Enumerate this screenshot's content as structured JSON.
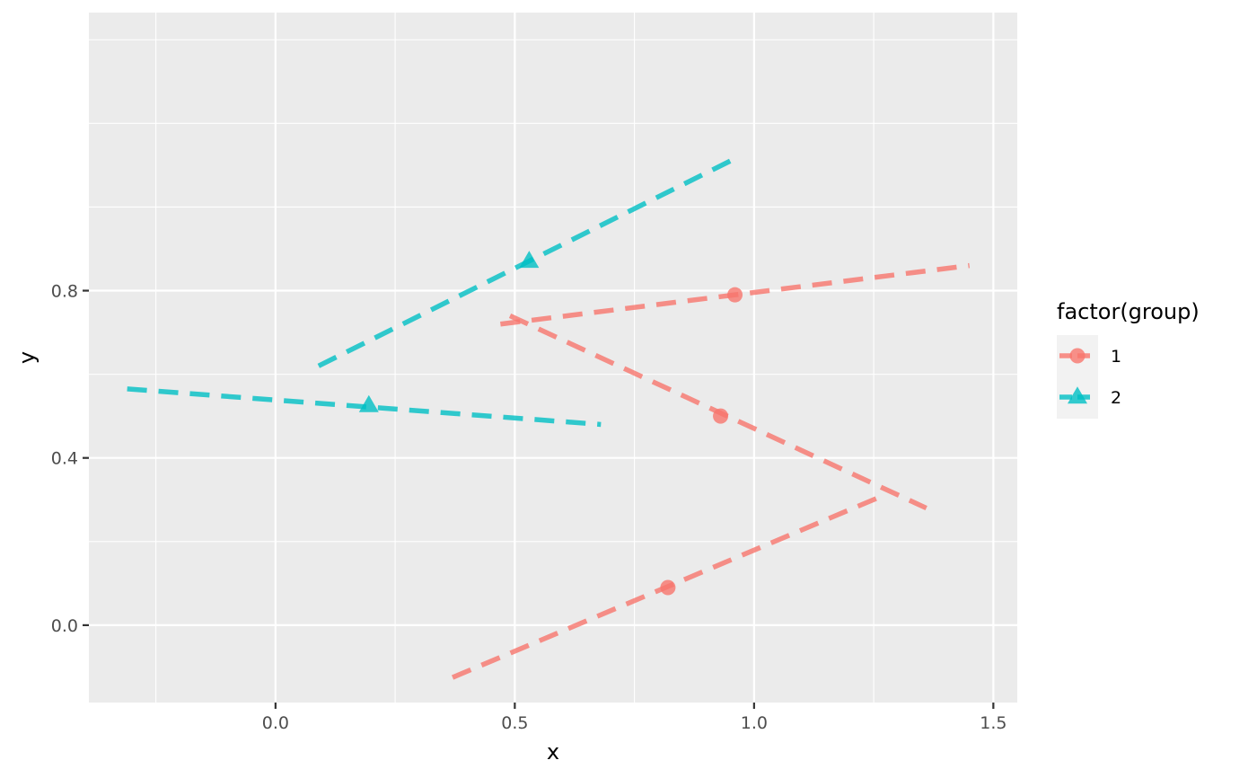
{
  "chart_data": {
    "type": "line",
    "xlabel": "x",
    "ylabel": "y",
    "xlim": [
      -0.39,
      1.55
    ],
    "ylim": [
      -0.185,
      1.465
    ],
    "x_ticks": [
      0.0,
      0.5,
      1.0,
      1.5
    ],
    "x_tick_labels": [
      "0.0",
      "0.5",
      "1.0",
      "1.5"
    ],
    "y_ticks": [
      0.0,
      0.4,
      0.8
    ],
    "y_tick_labels": [
      "0.0",
      "0.4",
      "0.8"
    ],
    "grid": true,
    "background": "#EBEBEB",
    "legend": {
      "title": "factor(group)",
      "position": "right",
      "entries": [
        {
          "label": "1",
          "color": "#F8766D",
          "shape": "circle"
        },
        {
          "label": "2",
          "color": "#00BFC4",
          "shape": "triangle"
        }
      ]
    },
    "linestyle": "dashed",
    "series": [
      {
        "group": "1",
        "color": "#F8766D",
        "shape": "circle",
        "points": [
          {
            "x": 0.96,
            "y": 0.79
          },
          {
            "x": 0.93,
            "y": 0.5
          },
          {
            "x": 0.82,
            "y": 0.09
          }
        ],
        "segments": [
          [
            {
              "x": 0.47,
              "y": 0.72
            },
            {
              "x": 1.45,
              "y": 0.86
            }
          ],
          [
            {
              "x": 0.49,
              "y": 0.74
            },
            {
              "x": 1.36,
              "y": 0.28
            }
          ],
          [
            {
              "x": 0.37,
              "y": -0.125
            },
            {
              "x": 1.27,
              "y": 0.31
            }
          ]
        ]
      },
      {
        "group": "2",
        "color": "#00BFC4",
        "shape": "triangle",
        "points": [
          {
            "x": 0.53,
            "y": 0.87
          },
          {
            "x": 0.195,
            "y": 0.525
          }
        ],
        "segments": [
          [
            {
              "x": 0.09,
              "y": 0.62
            },
            {
              "x": 0.95,
              "y": 1.11
            }
          ],
          [
            {
              "x": -0.31,
              "y": 0.565
            },
            {
              "x": 0.68,
              "y": 0.48
            }
          ]
        ]
      }
    ]
  }
}
